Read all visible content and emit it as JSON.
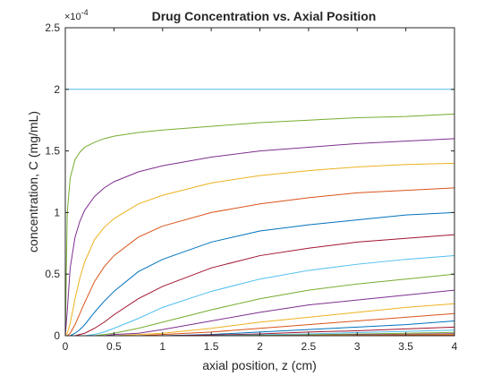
{
  "chart_data": {
    "type": "line",
    "title": "Drug Concentration vs. Axial Position",
    "xlabel": "axial position, z (cm)",
    "ylabel": "concentration, C (mg/mL)",
    "xlim": [
      0,
      4
    ],
    "ylim": [
      0,
      2.5
    ],
    "y_exponent_label": "×10",
    "y_exponent": "-4",
    "x_ticks": [
      "0",
      "0.5",
      "1",
      "1.5",
      "2",
      "2.5",
      "3",
      "3.5",
      "4"
    ],
    "y_ticks": [
      "0",
      "0.5",
      "1",
      "1.5",
      "2",
      "2.5"
    ],
    "x_tick_values": [
      0,
      0.5,
      1,
      1.5,
      2,
      2.5,
      3,
      3.5,
      4
    ],
    "y_tick_values": [
      0,
      0.5,
      1,
      1.5,
      2,
      2.5
    ],
    "grid": false,
    "box": true,
    "x": [
      0,
      0.02,
      0.05,
      0.1,
      0.15,
      0.2,
      0.3,
      0.4,
      0.5,
      0.75,
      1,
      1.5,
      2,
      2.5,
      3,
      3.5,
      4
    ],
    "series": [
      {
        "color": "#4DBEEE",
        "values": [
          2.0,
          2.0,
          2.0,
          2.0,
          2.0,
          2.0,
          2.0,
          2.0,
          2.0,
          2.0,
          2.0,
          2.0,
          2.0,
          2.0,
          2.0,
          2.0,
          2.0
        ]
      },
      {
        "color": "#77AC30",
        "values": [
          0,
          1.0,
          1.28,
          1.43,
          1.49,
          1.53,
          1.57,
          1.6,
          1.62,
          1.65,
          1.67,
          1.7,
          1.73,
          1.75,
          1.77,
          1.78,
          1.8
        ]
      },
      {
        "color": "#7E2F8E",
        "values": [
          0,
          0.2,
          0.55,
          0.8,
          0.93,
          1.02,
          1.13,
          1.2,
          1.25,
          1.33,
          1.38,
          1.45,
          1.5,
          1.53,
          1.56,
          1.58,
          1.6
        ]
      },
      {
        "color": "#EDB120",
        "values": [
          0,
          0.02,
          0.1,
          0.3,
          0.47,
          0.6,
          0.78,
          0.88,
          0.95,
          1.07,
          1.14,
          1.24,
          1.3,
          1.34,
          1.37,
          1.39,
          1.4
        ]
      },
      {
        "color": "#D95319",
        "values": [
          0,
          0,
          0.02,
          0.09,
          0.18,
          0.27,
          0.44,
          0.56,
          0.65,
          0.8,
          0.89,
          1.0,
          1.07,
          1.12,
          1.16,
          1.18,
          1.2
        ]
      },
      {
        "color": "#0072BD",
        "values": [
          0,
          0,
          0,
          0.02,
          0.05,
          0.09,
          0.19,
          0.28,
          0.36,
          0.52,
          0.62,
          0.76,
          0.85,
          0.9,
          0.94,
          0.98,
          1.0
        ]
      },
      {
        "color": "#A2142F",
        "values": [
          0,
          0,
          0,
          0,
          0.01,
          0.02,
          0.06,
          0.11,
          0.17,
          0.3,
          0.4,
          0.55,
          0.65,
          0.71,
          0.76,
          0.79,
          0.82
        ]
      },
      {
        "color": "#4DBEEE",
        "values": [
          0,
          0,
          0,
          0,
          0,
          0,
          0.01,
          0.03,
          0.06,
          0.14,
          0.23,
          0.36,
          0.46,
          0.53,
          0.58,
          0.62,
          0.65
        ]
      },
      {
        "color": "#77AC30",
        "values": [
          0,
          0,
          0,
          0,
          0,
          0,
          0,
          0.01,
          0.02,
          0.06,
          0.11,
          0.21,
          0.3,
          0.37,
          0.42,
          0.46,
          0.5
        ]
      },
      {
        "color": "#7E2F8E",
        "values": [
          0,
          0,
          0,
          0,
          0,
          0,
          0,
          0,
          0.01,
          0.02,
          0.05,
          0.12,
          0.19,
          0.25,
          0.29,
          0.33,
          0.37
        ]
      },
      {
        "color": "#EDB120",
        "values": [
          0,
          0,
          0,
          0,
          0,
          0,
          0,
          0,
          0,
          0.01,
          0.02,
          0.06,
          0.11,
          0.15,
          0.19,
          0.23,
          0.26
        ]
      },
      {
        "color": "#D95319",
        "values": [
          0,
          0,
          0,
          0,
          0,
          0,
          0,
          0,
          0,
          0,
          0.01,
          0.03,
          0.06,
          0.09,
          0.12,
          0.15,
          0.18
        ]
      },
      {
        "color": "#0072BD",
        "values": [
          0,
          0,
          0,
          0,
          0,
          0,
          0,
          0,
          0,
          0,
          0,
          0.01,
          0.03,
          0.05,
          0.07,
          0.09,
          0.12
        ]
      },
      {
        "color": "#A2142F",
        "values": [
          0,
          0,
          0,
          0,
          0,
          0,
          0,
          0,
          0,
          0,
          0,
          0.005,
          0.015,
          0.03,
          0.04,
          0.055,
          0.07
        ]
      },
      {
        "color": "#4DBEEE",
        "values": [
          0,
          0,
          0,
          0,
          0,
          0,
          0,
          0,
          0,
          0,
          0,
          0,
          0.007,
          0.015,
          0.025,
          0.035,
          0.045
        ]
      },
      {
        "color": "#77AC30",
        "values": [
          0,
          0,
          0,
          0,
          0,
          0,
          0,
          0,
          0,
          0,
          0,
          0,
          0.003,
          0.008,
          0.014,
          0.02,
          0.027
        ]
      },
      {
        "color": "#7E2F8E",
        "values": [
          0,
          0,
          0,
          0,
          0,
          0,
          0,
          0,
          0,
          0,
          0,
          0,
          0,
          0.004,
          0.008,
          0.012,
          0.016
        ]
      },
      {
        "color": "#EDB120",
        "values": [
          0,
          0,
          0,
          0,
          0,
          0,
          0,
          0,
          0,
          0,
          0,
          0,
          0,
          0.002,
          0.004,
          0.007,
          0.01
        ]
      },
      {
        "color": "#D95319",
        "values": [
          0,
          0,
          0,
          0,
          0,
          0,
          0,
          0,
          0,
          0,
          0,
          0,
          0,
          0,
          0.002,
          0.004,
          0.006
        ]
      }
    ]
  }
}
